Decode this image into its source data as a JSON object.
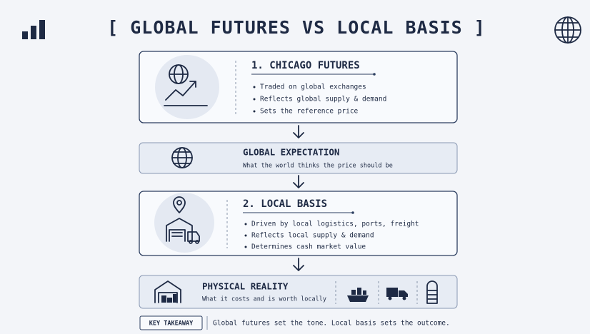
{
  "header": {
    "title": "[ GLOBAL FUTURES VS LOCAL BASIS ]"
  },
  "chicago_futures": {
    "heading": "1. CHICAGO FUTURES",
    "bullets": [
      "Traded on global exchanges",
      "Reflects global supply & demand",
      "Sets the reference price"
    ]
  },
  "global_expectation": {
    "title": "GLOBAL EXPECTATION",
    "subtitle": "What the world thinks the price should be"
  },
  "local_basis": {
    "heading": "2. LOCAL BASIS",
    "bullets": [
      "Driven by local logistics, ports, freight",
      "Reflects local supply & demand",
      "Determines cash market value"
    ]
  },
  "physical_reality": {
    "title": "PHYSICAL REALITY",
    "subtitle": "What it costs and is worth locally"
  },
  "key_takeaway": {
    "label": "KEY TAKEAWAY",
    "text": "Global futures set the tone. Local basis sets the outcome."
  }
}
